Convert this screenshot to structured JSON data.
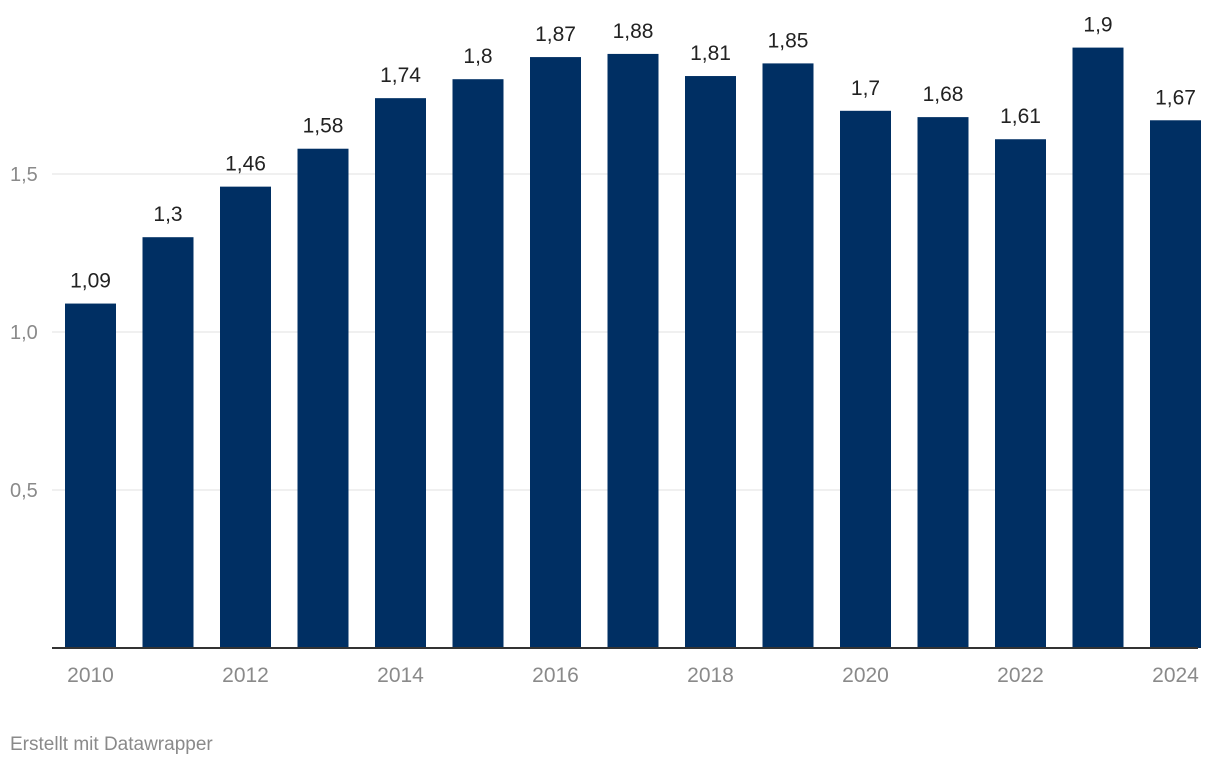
{
  "chart_data": {
    "type": "bar",
    "categories": [
      "2010",
      "2011",
      "2012",
      "2013",
      "2014",
      "2015",
      "2016",
      "2017",
      "2018",
      "2019",
      "2020",
      "2021",
      "2022",
      "2023",
      "2024"
    ],
    "values": [
      1.09,
      1.3,
      1.46,
      1.58,
      1.74,
      1.8,
      1.87,
      1.88,
      1.81,
      1.85,
      1.7,
      1.68,
      1.61,
      1.9,
      1.67
    ],
    "value_labels": [
      "1,09",
      "1,3",
      "1,46",
      "1,58",
      "1,74",
      "1,8",
      "1,87",
      "1,88",
      "1,81",
      "1,85",
      "1,7",
      "1,68",
      "1,61",
      "1,9",
      "1,67"
    ],
    "x_tick_labels": [
      "2010",
      "",
      "2012",
      "",
      "2014",
      "",
      "2016",
      "",
      "2018",
      "",
      "2020",
      "",
      "2022",
      "",
      "2024"
    ],
    "y_ticks": [
      0.5,
      1.0,
      1.5
    ],
    "y_tick_labels": [
      "0,5",
      "1,0",
      "1,5"
    ],
    "ylim": [
      0,
      1.9
    ],
    "grid": true,
    "bar_color": "#002f63",
    "gridline_color": "#e2e2e2",
    "axis_color": "#333333",
    "value_label_color": "#222222",
    "tick_label_color": "#8a8a8a"
  },
  "credit": "Erstellt mit Datawrapper"
}
